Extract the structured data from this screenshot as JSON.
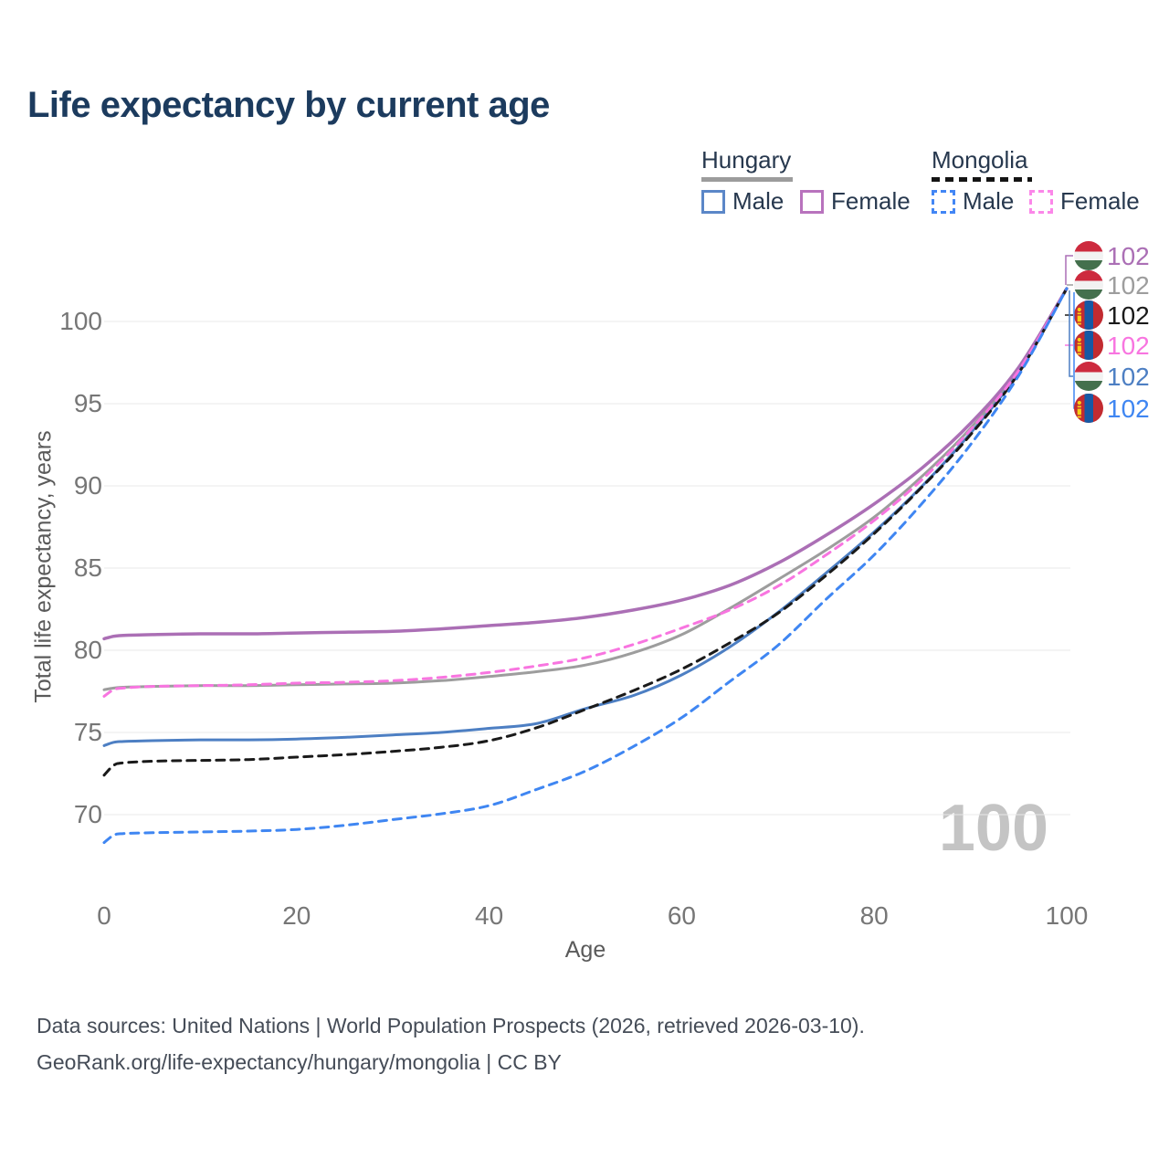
{
  "title": "Life expectancy by current age",
  "legend": {
    "groups": [
      {
        "name": "Hungary",
        "line_style": "solid",
        "items": [
          {
            "label": "Male"
          },
          {
            "label": "Female"
          }
        ]
      },
      {
        "name": "Mongolia",
        "line_style": "dashed",
        "items": [
          {
            "label": "Male"
          },
          {
            "label": "Female"
          }
        ]
      }
    ]
  },
  "age_counter": "100",
  "footer": {
    "line1": "Data sources: United Nations | World Population Prospects (2026, retrieved 2026-03-10).",
    "line2": "GeoRank.org/life-expectancy/hungary/mongolia | CC BY"
  },
  "colors": {
    "hungary_female": "#ab6fb5",
    "hungary_total": "#9d9d9d",
    "mongolia_total": "#1a1a1a",
    "mongolia_female": "#f875e0",
    "hungary_male": "#4d7fc3",
    "mongolia_male": "#3f86f2",
    "grid": "#e8e8e8",
    "title_text": "#1c3b5e",
    "axis_text": "#767676",
    "counter_text": "#c4c4c4"
  },
  "chart_data": {
    "type": "line",
    "title": "Life expectancy by current age",
    "xlabel": "Age",
    "ylabel": "Total life expectancy, years",
    "xlim": [
      0,
      100
    ],
    "ylim": [
      67,
      103
    ],
    "x_ticks": [
      0,
      20,
      40,
      60,
      80,
      100
    ],
    "y_ticks": [
      70,
      75,
      80,
      85,
      90,
      95,
      100
    ],
    "grid": "horizontal",
    "legend_position": "top-right",
    "x": [
      0,
      1,
      2,
      5,
      10,
      15,
      20,
      25,
      30,
      35,
      40,
      45,
      50,
      55,
      60,
      65,
      70,
      75,
      80,
      85,
      90,
      95,
      100
    ],
    "series": [
      {
        "name": "Hungary Female",
        "country": "Hungary",
        "sex": "Female",
        "flag": "hu",
        "color": "#ab6fb5",
        "dash": "solid",
        "end_label": "102",
        "values": [
          80.7,
          80.85,
          80.9,
          80.95,
          81.0,
          81.0,
          81.05,
          81.1,
          81.15,
          81.3,
          81.5,
          81.7,
          82.0,
          82.45,
          83.05,
          83.95,
          85.3,
          87.0,
          88.9,
          91.1,
          93.8,
          97.2,
          102
        ]
      },
      {
        "name": "Hungary Total",
        "country": "Hungary",
        "sex": "All",
        "flag": "hu",
        "color": "#9d9d9d",
        "dash": "solid",
        "end_label": "102",
        "values": [
          77.6,
          77.7,
          77.75,
          77.8,
          77.85,
          77.85,
          77.9,
          77.95,
          78.0,
          78.15,
          78.4,
          78.7,
          79.1,
          79.85,
          80.95,
          82.55,
          84.3,
          86.1,
          88.1,
          90.6,
          93.5,
          97.1,
          102
        ]
      },
      {
        "name": "Mongolia Total",
        "country": "Mongolia",
        "sex": "All",
        "flag": "mn",
        "color": "#1a1a1a",
        "dash": "dashed",
        "end_label": "102",
        "values": [
          72.4,
          73.0,
          73.15,
          73.25,
          73.3,
          73.35,
          73.5,
          73.65,
          73.85,
          74.1,
          74.5,
          75.3,
          76.4,
          77.55,
          78.85,
          80.45,
          82.25,
          84.55,
          87.1,
          89.95,
          93.1,
          96.85,
          102
        ]
      },
      {
        "name": "Mongolia Female",
        "country": "Mongolia",
        "sex": "Female",
        "flag": "mn",
        "color": "#f875e0",
        "dash": "dashed",
        "end_label": "102",
        "values": [
          77.2,
          77.6,
          77.7,
          77.8,
          77.85,
          77.9,
          78.0,
          78.05,
          78.15,
          78.35,
          78.65,
          79.05,
          79.55,
          80.35,
          81.35,
          82.45,
          83.9,
          85.8,
          87.9,
          90.4,
          93.4,
          97.0,
          102
        ]
      },
      {
        "name": "Hungary Male",
        "country": "Hungary",
        "sex": "Male",
        "flag": "hu",
        "color": "#4d7fc3",
        "dash": "solid",
        "end_label": "102",
        "values": [
          74.2,
          74.4,
          74.45,
          74.5,
          74.55,
          74.55,
          74.6,
          74.7,
          74.85,
          75.0,
          75.25,
          75.55,
          76.45,
          77.25,
          78.5,
          80.2,
          82.3,
          84.7,
          87.2,
          90.0,
          93.2,
          96.9,
          102
        ]
      },
      {
        "name": "Mongolia Male",
        "country": "Mongolia",
        "sex": "Male",
        "flag": "mn",
        "color": "#3f86f2",
        "dash": "dashed",
        "end_label": "102",
        "values": [
          68.3,
          68.75,
          68.85,
          68.9,
          68.95,
          69.0,
          69.1,
          69.35,
          69.7,
          70.05,
          70.55,
          71.55,
          72.65,
          74.15,
          75.9,
          78.1,
          80.3,
          83.1,
          85.8,
          88.95,
          92.5,
          96.7,
          102
        ]
      }
    ]
  }
}
